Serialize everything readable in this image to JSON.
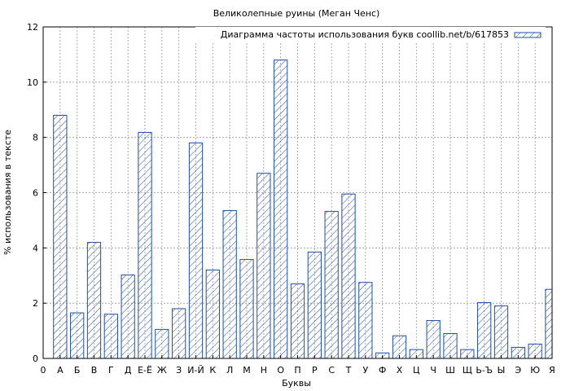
{
  "chart_data": {
    "type": "bar",
    "title": "Великолепные руины (Меган Ченс)",
    "xlabel": "Буквы",
    "ylabel": "% использования в тексте",
    "legend": {
      "label": "Диаграмма частоты использования букв coollib.net/b/617853",
      "placement": "top-right"
    },
    "categories": [
      "А",
      "Б",
      "В",
      "Г",
      "Д",
      "Е-Ё",
      "Ж",
      "З",
      "И-Й",
      "К",
      "Л",
      "М",
      "Н",
      "О",
      "П",
      "Р",
      "С",
      "Т",
      "У",
      "Ф",
      "Х",
      "Ц",
      "Ч",
      "Ш",
      "Щ",
      "Ь-Ъ",
      "Ы",
      "Э",
      "Ю",
      "Я"
    ],
    "values": [
      8.8,
      1.65,
      4.2,
      1.6,
      3.02,
      8.18,
      1.05,
      1.8,
      7.8,
      3.2,
      5.35,
      3.58,
      6.7,
      10.8,
      2.7,
      3.85,
      5.32,
      5.95,
      2.75,
      0.2,
      0.82,
      0.32,
      1.37,
      0.9,
      0.32,
      2.02,
      1.9,
      0.4,
      0.52,
      2.5
    ],
    "x_axis_origin_label": "0",
    "ylim": [
      0,
      12
    ],
    "yticks": [
      0,
      2,
      4,
      6,
      8,
      10,
      12
    ],
    "grid": true,
    "bar_color": "#1f4fa8",
    "hatch": "diagonal"
  }
}
